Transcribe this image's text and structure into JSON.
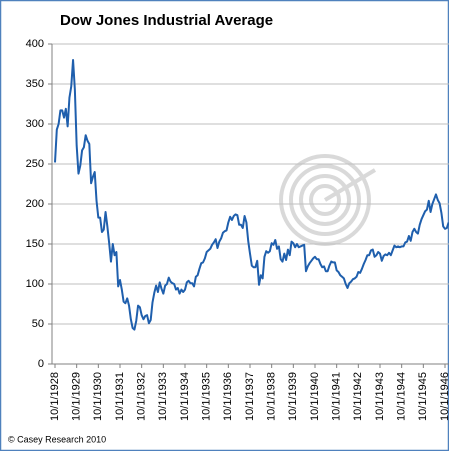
{
  "chart_data": {
    "type": "line",
    "title": "Dow Jones Industrial Average",
    "credit": "© Casey Research 2010",
    "categories": [
      "10/1/1928",
      null,
      null,
      null,
      null,
      null,
      null,
      null,
      null,
      null,
      null,
      null,
      "10/1/1929",
      null,
      null,
      null,
      null,
      null,
      null,
      null,
      null,
      null,
      null,
      null,
      "10/1/1930",
      null,
      null,
      null,
      null,
      null,
      null,
      null,
      null,
      null,
      null,
      null,
      "10/1/1931",
      null,
      null,
      null,
      null,
      null,
      null,
      null,
      null,
      null,
      null,
      null,
      "10/1/1932",
      null,
      null,
      null,
      null,
      null,
      null,
      null,
      null,
      null,
      null,
      null,
      "10/1/1933",
      null,
      null,
      null,
      null,
      null,
      null,
      null,
      null,
      null,
      null,
      null,
      "10/1/1934",
      null,
      null,
      null,
      null,
      null,
      null,
      null,
      null,
      null,
      null,
      null,
      "10/1/1935",
      null,
      null,
      null,
      null,
      null,
      null,
      null,
      null,
      null,
      null,
      null,
      "10/1/1936",
      null,
      null,
      null,
      null,
      null,
      null,
      null,
      null,
      null,
      null,
      null,
      "10/1/1937",
      null,
      null,
      null,
      null,
      null,
      null,
      null,
      null,
      null,
      null,
      null,
      "10/1/1938",
      null,
      null,
      null,
      null,
      null,
      null,
      null,
      null,
      null,
      null,
      null,
      "10/1/1939",
      null,
      null,
      null,
      null,
      null,
      null,
      null,
      null,
      null,
      null,
      null,
      "10/1/1940",
      null,
      null,
      null,
      null,
      null,
      null,
      null,
      null,
      null,
      null,
      null,
      "10/1/1941",
      null,
      null,
      null,
      null,
      null,
      null,
      null,
      null,
      null,
      null,
      null,
      "10/1/1942",
      null,
      null,
      null,
      null,
      null,
      null,
      null,
      null,
      null,
      null,
      null,
      "10/1/1943",
      null,
      null,
      null,
      null,
      null,
      null,
      null,
      null,
      null,
      null,
      null,
      "10/1/1944",
      null,
      null,
      null,
      null,
      null,
      null,
      null,
      null,
      null,
      null,
      null,
      "10/1/1945",
      null,
      null,
      null,
      null,
      null,
      null,
      null,
      null,
      null,
      null,
      null,
      "10/1/1946",
      null,
      null
    ],
    "values": [
      252,
      293,
      300,
      317,
      317,
      308,
      319,
      297,
      333,
      347,
      380,
      343,
      273,
      238,
      248,
      267,
      271,
      286,
      279,
      275,
      226,
      234,
      240,
      204,
      183,
      183,
      165,
      168,
      190,
      172,
      151,
      128,
      150,
      136,
      140,
      97,
      105,
      93,
      78,
      76,
      82,
      73,
      56,
      45,
      43,
      54,
      73,
      71,
      61,
      56,
      60,
      61,
      51,
      55,
      77,
      89,
      98,
      90,
      102,
      94,
      88,
      98,
      100,
      108,
      103,
      101,
      100,
      93,
      95,
      88,
      93,
      90,
      93,
      102,
      104,
      101,
      101,
      97,
      109,
      111,
      119,
      126,
      127,
      132,
      140,
      142,
      144,
      149,
      152,
      156,
      145,
      153,
      157,
      164,
      166,
      167,
      177,
      184,
      180,
      185,
      187,
      186,
      174,
      174,
      170,
      185,
      177,
      154,
      138,
      123,
      121,
      121,
      129,
      99,
      111,
      107,
      134,
      141,
      139,
      141,
      151,
      149,
      155,
      144,
      147,
      131,
      128,
      138,
      130,
      143,
      136,
      153,
      151,
      146,
      150,
      146,
      147,
      148,
      149,
      116,
      122,
      126,
      129,
      132,
      134,
      131,
      131,
      125,
      121,
      122,
      116,
      116,
      123,
      128,
      127,
      127,
      117,
      115,
      111,
      109,
      107,
      100,
      95,
      101,
      103,
      106,
      107,
      109,
      115,
      114,
      119,
      125,
      130,
      136,
      136,
      142,
      143,
      134,
      136,
      140,
      138,
      129,
      135,
      137,
      136,
      139,
      136,
      142,
      148,
      146,
      147,
      146,
      147,
      147,
      152,
      153,
      160,
      154,
      165,
      169,
      165,
      163,
      174,
      181,
      186,
      191,
      193,
      204,
      190,
      200,
      206,
      212,
      205,
      201,
      189,
      172,
      169,
      170,
      177
    ],
    "color": "#1f5fad",
    "ylim": [
      0,
      400
    ],
    "yticks": [
      0,
      50,
      100,
      150,
      200,
      250,
      300,
      350,
      400
    ],
    "grid": true
  }
}
